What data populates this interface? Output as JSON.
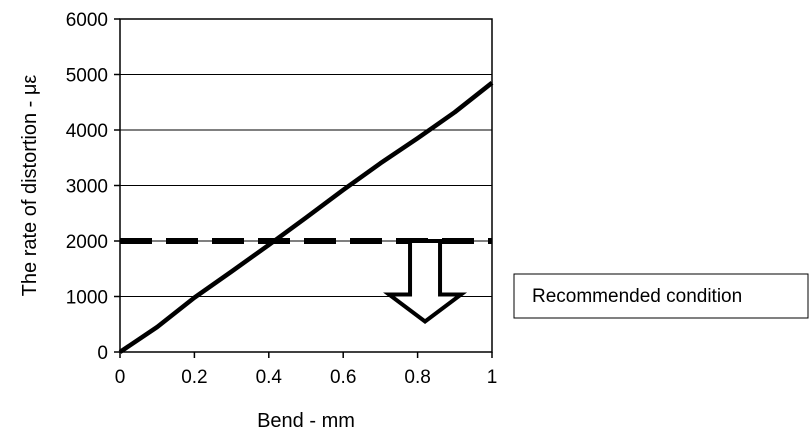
{
  "chart_data": {
    "type": "line",
    "xlabel": "Bend - mm",
    "ylabel": "The rate of distortion - με",
    "xlim": [
      0,
      1
    ],
    "ylim": [
      0,
      6000
    ],
    "x_ticks": [
      "0",
      "0.2",
      "0.4",
      "0.6",
      "0.8",
      "1"
    ],
    "y_ticks": [
      "0",
      "1000",
      "2000",
      "3000",
      "4000",
      "5000",
      "6000"
    ],
    "grid": "horizontal",
    "series": [
      {
        "style": "solid",
        "x": [
          0,
          0.1,
          0.2,
          0.3,
          0.4,
          0.5,
          0.6,
          0.7,
          0.8,
          0.9,
          1.0
        ],
        "y": [
          0,
          450,
          980,
          1450,
          1930,
          2420,
          2920,
          3400,
          3850,
          4320,
          4850
        ]
      },
      {
        "style": "dashed",
        "x": [
          0,
          1
        ],
        "y": [
          2000,
          2000
        ]
      }
    ],
    "annotation": {
      "text": "Recommended condition",
      "arrow": "down",
      "arrow_x": 0.82,
      "arrow_from_y": 2000,
      "arrow_to_y": 550
    }
  }
}
